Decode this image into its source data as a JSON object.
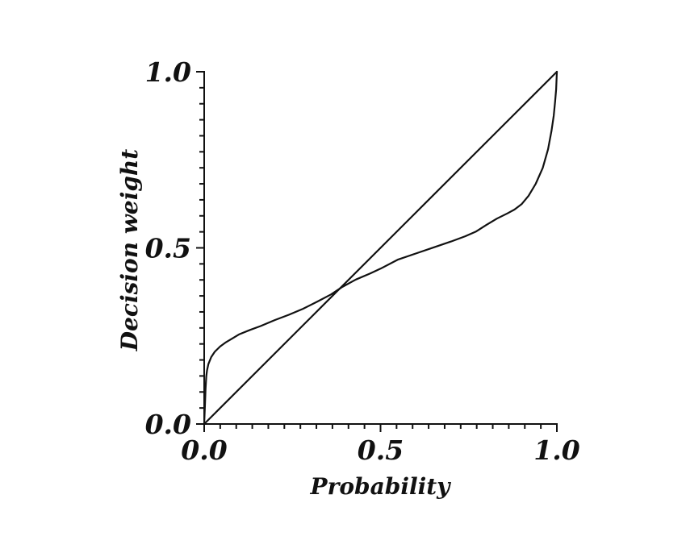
{
  "colors": {
    "ink": "#111111",
    "background": "#ffffff"
  },
  "chart_data": {
    "type": "line",
    "title": "",
    "xlabel": "Probability",
    "ylabel": "Decision weight",
    "xlim": [
      0,
      1
    ],
    "ylim": [
      0,
      1
    ],
    "grid": false,
    "legend": null,
    "x_ticks": {
      "values": [
        0.0,
        0.5,
        1.0
      ],
      "labels": [
        "0.0",
        "0.5",
        "1.0"
      ],
      "minor_between_majors": 10
    },
    "y_ticks": {
      "values": [
        0.0,
        0.5,
        1.0
      ],
      "labels": [
        "0.0",
        "0.5",
        "1.0"
      ],
      "minor_between_majors": 10
    },
    "series": [
      {
        "name": "probability-weighting-curve",
        "description": "inverse-S decision weight function",
        "points": [
          [
            0.0,
            0.0
          ],
          [
            0.002,
            0.05
          ],
          [
            0.004,
            0.1
          ],
          [
            0.006,
            0.135
          ],
          [
            0.008,
            0.152
          ],
          [
            0.012,
            0.17
          ],
          [
            0.02,
            0.19
          ],
          [
            0.03,
            0.205
          ],
          [
            0.045,
            0.22
          ],
          [
            0.06,
            0.231
          ],
          [
            0.08,
            0.243
          ],
          [
            0.1,
            0.255
          ],
          [
            0.13,
            0.267
          ],
          [
            0.16,
            0.278
          ],
          [
            0.2,
            0.295
          ],
          [
            0.24,
            0.31
          ],
          [
            0.28,
            0.327
          ],
          [
            0.32,
            0.347
          ],
          [
            0.36,
            0.368
          ],
          [
            0.39,
            0.388
          ],
          [
            0.43,
            0.41
          ],
          [
            0.47,
            0.427
          ],
          [
            0.5,
            0.441
          ],
          [
            0.55,
            0.467
          ],
          [
            0.6,
            0.484
          ],
          [
            0.65,
            0.501
          ],
          [
            0.7,
            0.518
          ],
          [
            0.74,
            0.533
          ],
          [
            0.77,
            0.546
          ],
          [
            0.8,
            0.565
          ],
          [
            0.83,
            0.583
          ],
          [
            0.86,
            0.598
          ],
          [
            0.88,
            0.609
          ],
          [
            0.9,
            0.624
          ],
          [
            0.92,
            0.648
          ],
          [
            0.94,
            0.682
          ],
          [
            0.96,
            0.727
          ],
          [
            0.975,
            0.78
          ],
          [
            0.985,
            0.833
          ],
          [
            0.991,
            0.875
          ],
          [
            0.995,
            0.915
          ],
          [
            0.998,
            0.95
          ],
          [
            1.0,
            1.0
          ]
        ]
      },
      {
        "name": "identity-diagonal",
        "description": "45-degree reference line w = p",
        "points": [
          [
            0.0,
            0.0
          ],
          [
            1.0,
            1.0
          ]
        ]
      }
    ]
  }
}
